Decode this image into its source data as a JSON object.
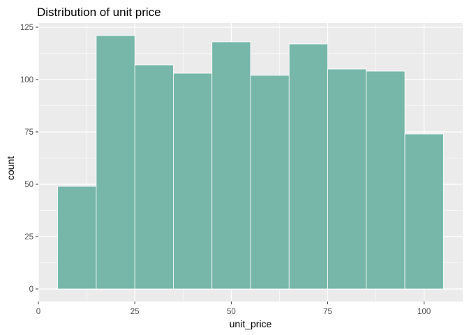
{
  "chart_data": {
    "type": "bar",
    "title": "Distribution of unit price",
    "xlabel": "unit_price",
    "ylabel": "count",
    "bin_width": 10,
    "bins": [
      {
        "start": 5,
        "end": 15,
        "count": 49
      },
      {
        "start": 15,
        "end": 25,
        "count": 121
      },
      {
        "start": 25,
        "end": 35,
        "count": 107
      },
      {
        "start": 35,
        "end": 45,
        "count": 103
      },
      {
        "start": 45,
        "end": 55,
        "count": 118
      },
      {
        "start": 55,
        "end": 65,
        "count": 102
      },
      {
        "start": 65,
        "end": 75,
        "count": 117
      },
      {
        "start": 75,
        "end": 85,
        "count": 105
      },
      {
        "start": 85,
        "end": 95,
        "count": 104
      },
      {
        "start": 95,
        "end": 105,
        "count": 74
      }
    ],
    "xlim": [
      0,
      110
    ],
    "ylim": [
      -6,
      127
    ],
    "x_ticks": [
      "0",
      "25",
      "50",
      "75",
      "100"
    ],
    "y_ticks": [
      "0",
      "25",
      "50",
      "75",
      "100",
      "125"
    ],
    "grid": true,
    "colors": {
      "bar_fill": "#76b7a9",
      "bar_outline": "#ffffff",
      "panel_background": "#ebebeb",
      "grid": "#ffffff"
    }
  }
}
